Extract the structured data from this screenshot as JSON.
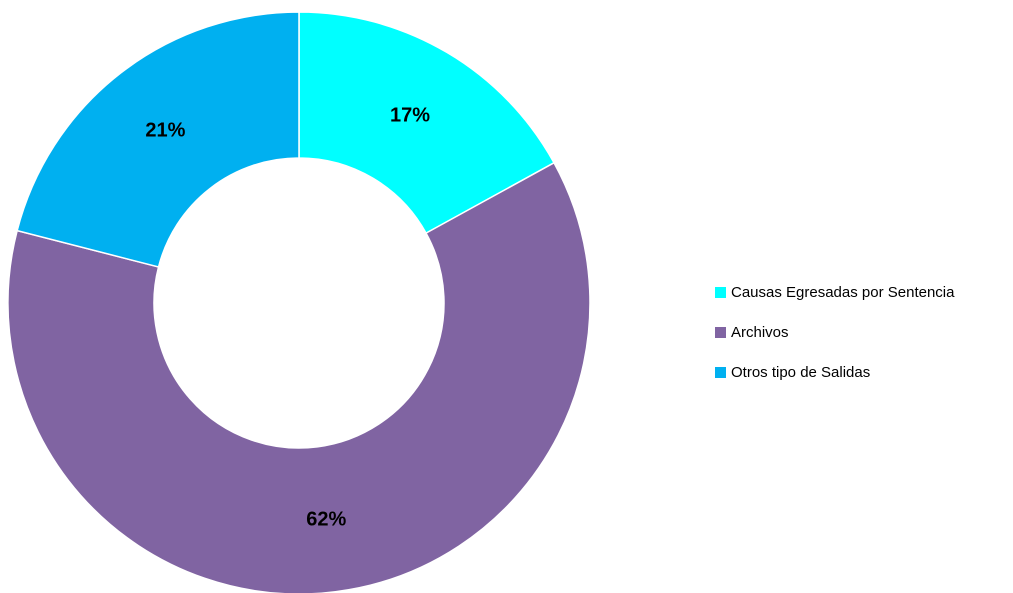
{
  "chart_data": {
    "type": "pie",
    "variant": "donut",
    "categories": [
      "Causas Egresadas por Sentencia",
      "Archivos",
      "Otros tipo de Salidas"
    ],
    "values": [
      17,
      62,
      21
    ],
    "data_labels": [
      "17%",
      "62%",
      "21%"
    ],
    "colors": [
      "#00FFFF",
      "#8064A2",
      "#00B0F0"
    ],
    "legend_position": "right",
    "title": ""
  }
}
